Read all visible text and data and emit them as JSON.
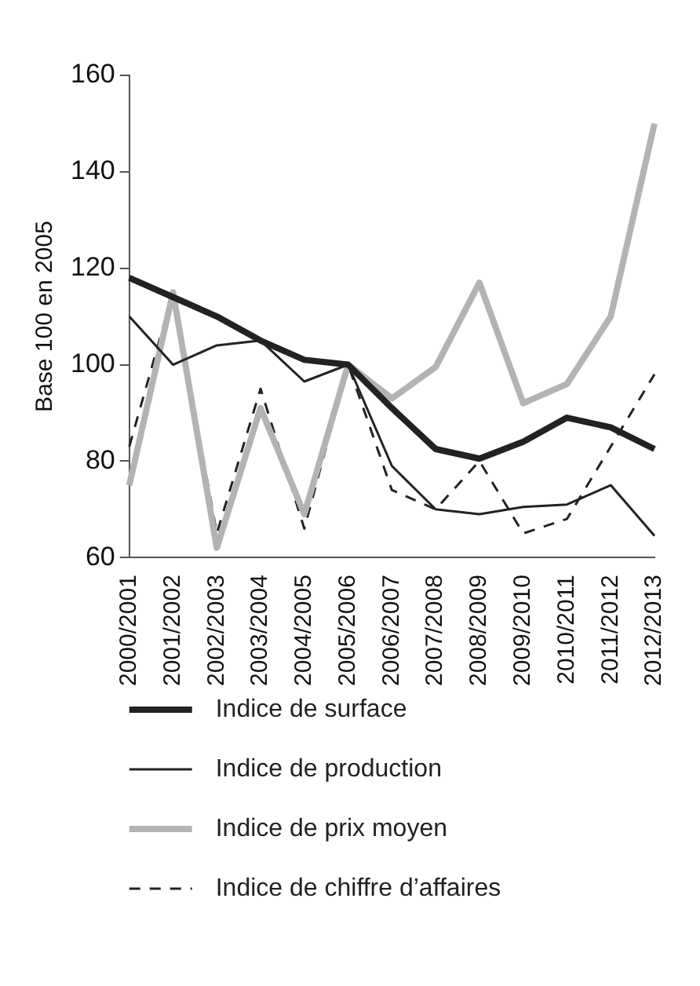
{
  "chart_data": {
    "type": "line",
    "ylabel": "Base 100 en 2005",
    "categories": [
      "2000/2001",
      "2001/2002",
      "2002/2003",
      "2003/2004",
      "2004/2005",
      "2005/2006",
      "2006/2007",
      "2007/2008",
      "2008/2009",
      "2009/2010",
      "2010/2011",
      "2011/2012",
      "2012/2013"
    ],
    "series": [
      {
        "name": "Indice de surface",
        "color": "#222222",
        "line_style": "solid",
        "values": [
          118,
          114,
          110,
          105,
          101,
          100,
          91,
          82.5,
          80.5,
          84,
          89,
          87,
          82.5
        ]
      },
      {
        "name": "Indice de production",
        "color": "#222222",
        "line_style": "solid",
        "values": [
          110,
          100,
          104,
          105,
          96.5,
          100,
          79,
          70,
          69,
          70.5,
          71,
          75,
          64.5
        ]
      },
      {
        "name": "Indice de prix moyen",
        "color": "#b3b3b3",
        "line_style": "solid",
        "values": [
          75,
          115,
          62,
          91,
          69,
          100,
          93,
          99.5,
          117,
          92,
          96,
          110,
          150
        ]
      },
      {
        "name": "Indice de chiffre d’affaires",
        "color": "#222222",
        "line_style": "dashed",
        "values": [
          83,
          115,
          65,
          95,
          66,
          100,
          74,
          70,
          80,
          65,
          68,
          83,
          98
        ]
      }
    ],
    "ylim": [
      60,
      160
    ],
    "yticks": [
      60,
      80,
      100,
      120,
      140,
      160
    ],
    "grid": false,
    "legend": "bottom",
    "marker": "none"
  }
}
